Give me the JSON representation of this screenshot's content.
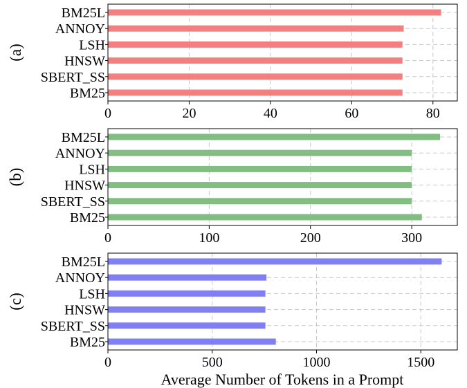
{
  "xlabel": "Average Number of Tokens in a Prompt",
  "chart_data": [
    {
      "type": "bar",
      "orientation": "horizontal",
      "panel_label": "(a)",
      "categories": [
        "BM25L",
        "ANNOY",
        "LSH",
        "HNSW",
        "SBERT_SS",
        "BM25"
      ],
      "values": [
        82,
        72.8,
        72.5,
        72.5,
        72.5,
        72.5
      ],
      "xlim": [
        0,
        86
      ],
      "xticks": [
        0,
        20,
        40,
        60,
        80
      ],
      "color": "#f28080",
      "grid": true,
      "xlabel": ""
    },
    {
      "type": "bar",
      "orientation": "horizontal",
      "panel_label": "(b)",
      "categories": [
        "BM25L",
        "ANNOY",
        "LSH",
        "HNSW",
        "SBERT_SS",
        "BM25"
      ],
      "values": [
        328,
        300,
        300,
        300,
        300,
        310
      ],
      "xlim": [
        0,
        345
      ],
      "xticks": [
        0,
        100,
        200,
        300
      ],
      "color": "#82bd82",
      "grid": true,
      "xlabel": ""
    },
    {
      "type": "bar",
      "orientation": "horizontal",
      "panel_label": "(c)",
      "categories": [
        "BM25L",
        "ANNOY",
        "LSH",
        "HNSW",
        "SBERT_SS",
        "BM25"
      ],
      "values": [
        1600,
        760,
        755,
        755,
        755,
        805
      ],
      "xlim": [
        0,
        1675
      ],
      "xticks": [
        0,
        500,
        1000,
        1500
      ],
      "color": "#8080f2",
      "grid": true,
      "xlabel": "Average Number of Tokens in a Prompt"
    }
  ]
}
